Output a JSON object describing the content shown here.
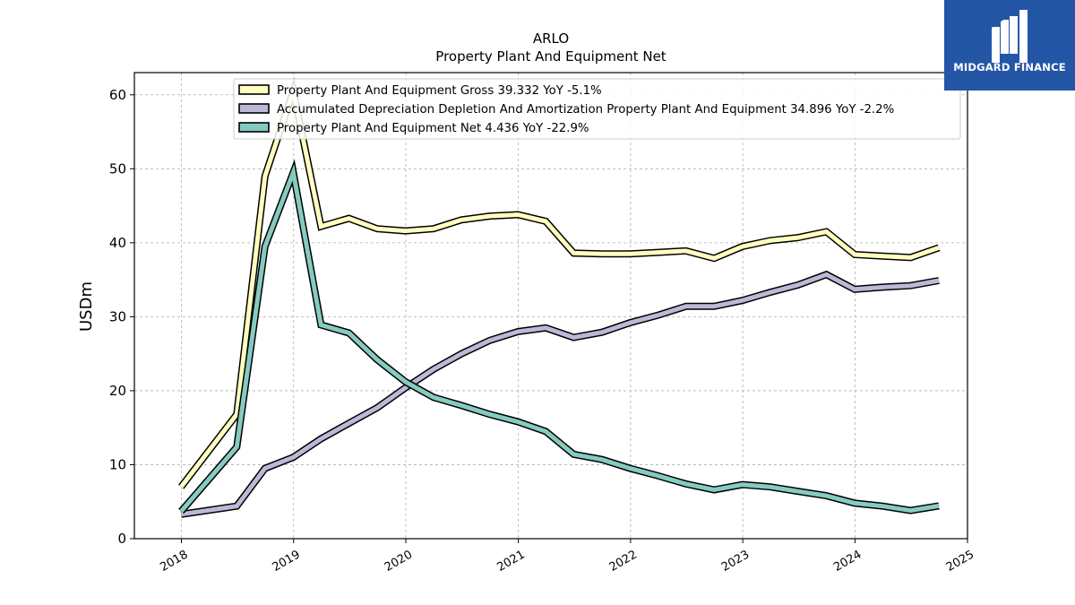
{
  "brand": {
    "name": "MIDGARD FINANCE",
    "bg_color": "#2456a6"
  },
  "chart_data": {
    "type": "line",
    "title": "ARLO",
    "subtitle": "Property Plant And Equipment Net",
    "xlabel": "",
    "ylabel": "USDm",
    "xlim": [
      "2017-08-01",
      "2025-01-01"
    ],
    "ylim": [
      0,
      63
    ],
    "x_ticks": [
      "2018",
      "2019",
      "2020",
      "2021",
      "2022",
      "2023",
      "2024",
      "2025"
    ],
    "y_ticks": [
      0,
      10,
      20,
      30,
      40,
      50,
      60
    ],
    "grid": true,
    "legend_position": "top",
    "x": [
      "2017-12-31",
      "2018-06-30",
      "2018-09-30",
      "2018-12-31",
      "2019-03-31",
      "2019-06-30",
      "2019-09-30",
      "2019-12-31",
      "2020-03-31",
      "2020-06-30",
      "2020-09-30",
      "2020-12-31",
      "2021-03-31",
      "2021-06-30",
      "2021-09-30",
      "2021-12-31",
      "2022-03-31",
      "2022-06-30",
      "2022-09-30",
      "2022-12-31",
      "2023-03-31",
      "2023-06-30",
      "2023-09-30",
      "2023-12-31",
      "2024-03-31",
      "2024-06-30",
      "2024-09-30"
    ],
    "series": [
      {
        "name": "Property Plant And Equipment Gross",
        "legend_label": "Property Plant And Equipment Gross  39.332 YoY -5.1%",
        "color": "#ffffbf",
        "values": [
          7.0,
          16.8,
          49.0,
          60.5,
          42.2,
          43.3,
          41.9,
          41.6,
          41.9,
          43.1,
          43.6,
          43.8,
          42.9,
          38.6,
          38.5,
          38.5,
          38.7,
          38.9,
          37.9,
          39.5,
          40.3,
          40.7,
          41.5,
          38.4,
          38.2,
          38.0,
          39.332
        ]
      },
      {
        "name": "Accumulated Depreciation Depletion And Amortization Property Plant And Equipment",
        "legend_label": "Accumulated Depreciation Depletion And Amortization Property Plant And Equipment  34.896 YoY -2.2%",
        "color": "#bcb8d8",
        "values": [
          3.3,
          4.4,
          9.5,
          11.0,
          13.5,
          15.6,
          17.7,
          20.4,
          22.9,
          25.0,
          26.8,
          28.0,
          28.5,
          27.2,
          27.9,
          29.2,
          30.2,
          31.4,
          31.4,
          32.2,
          33.3,
          34.3,
          35.7,
          33.7,
          34.0,
          34.2,
          34.896
        ]
      },
      {
        "name": "Property Plant And Equipment Net",
        "legend_label": "Property Plant And Equipment Net  4.436 YoY -22.9%",
        "color": "#86cbbf",
        "values": [
          3.7,
          12.4,
          39.5,
          49.5,
          28.9,
          27.8,
          24.2,
          21.2,
          19.1,
          18.0,
          16.8,
          15.8,
          14.5,
          11.4,
          10.7,
          9.5,
          8.5,
          7.4,
          6.6,
          7.3,
          7.0,
          6.4,
          5.8,
          4.8,
          4.4,
          3.8,
          4.436
        ]
      }
    ]
  }
}
